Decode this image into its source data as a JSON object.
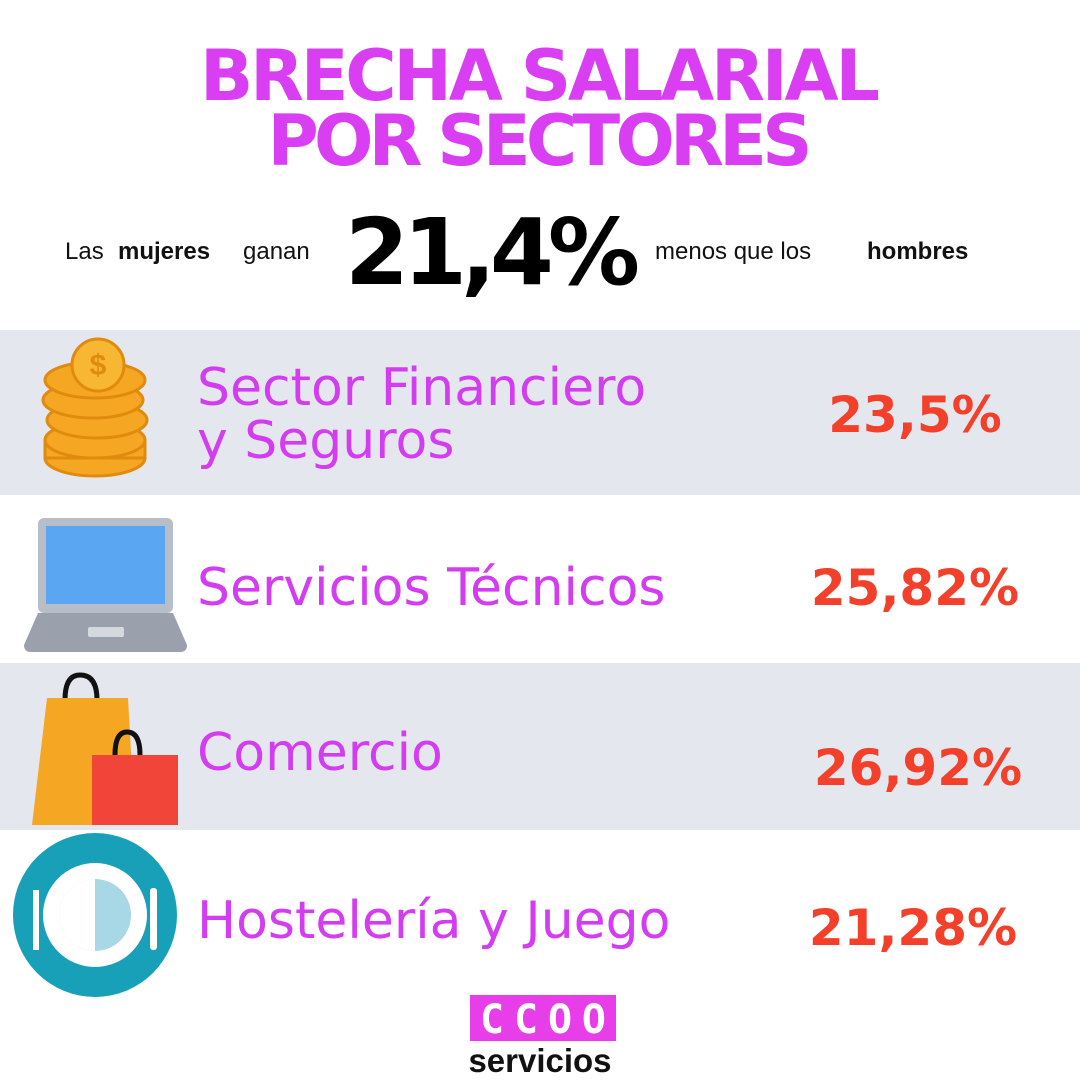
{
  "header": {
    "title": [
      "BRECHA SALARIAL",
      "POR SECTORES"
    ],
    "subtitle": {
      "before": [
        "Las",
        "mujeres",
        "ganan"
      ],
      "figure": "21,4%",
      "after": [
        "menos que los",
        "hombres"
      ]
    }
  },
  "rows": [
    {
      "label": [
        "Sector Financiero",
        "y Seguros"
      ],
      "value": "23,5%"
    },
    {
      "label": [
        "Servicios Técnicos"
      ],
      "value": "25,82%"
    },
    {
      "label": [
        "Comercio"
      ],
      "value": "26,92%"
    },
    {
      "label": [
        "Hostelería y Juego"
      ],
      "value": "21,28%"
    }
  ],
  "logo": {
    "mark": "CCOO",
    "name": "servicios"
  }
}
